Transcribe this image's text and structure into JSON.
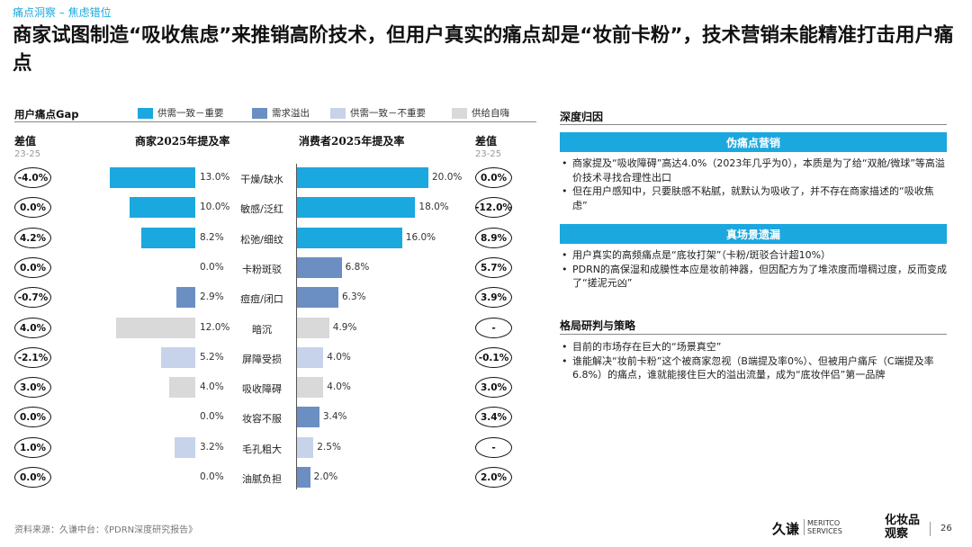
{
  "breadcrumb": "痛点洞察 – 焦虑错位",
  "headline": "商家试图制造“吸收焦虑”来推销高阶技术，但用户真实的痛点却是“妆前卡粉”，技术营销未能精准打击用户痛点",
  "chart": {
    "title": "用户痛点Gap",
    "legend": [
      {
        "label": "供需一致－重要",
        "color": "#1ba8df"
      },
      {
        "label": "需求溢出",
        "color": "#6b8fc2"
      },
      {
        "label": "供需一致－不重要",
        "color": "#c7d3ea"
      },
      {
        "label": "供给自嗨",
        "color": "#d9d9d9"
      }
    ],
    "left_diff_header": "差值",
    "left_diff_sub": "23-25",
    "merchant_header": "商家2025年提及率",
    "consumer_header": "消费者2025年提及率",
    "right_diff_header": "差值",
    "right_diff_sub": "23-25"
  },
  "chart_data": {
    "type": "bar",
    "categories": [
      "干燥/缺水",
      "敏感/泛红",
      "松弛/细纹",
      "卡粉斑驳",
      "痘痘/闭口",
      "暗沉",
      "屏障受损",
      "吸收障碍",
      "妆容不服",
      "毛孔粗大",
      "油腻负担"
    ],
    "series": [
      {
        "name": "商家2025年提及率",
        "values": [
          13.0,
          10.0,
          8.2,
          0.0,
          2.9,
          12.0,
          5.2,
          4.0,
          0.0,
          3.2,
          0.0
        ],
        "labels": [
          "13.0%",
          "10.0%",
          "8.2%",
          "0.0%",
          "2.9%",
          "12.0%",
          "5.2%",
          "4.0%",
          "0.0%",
          "3.2%",
          "0.0%"
        ]
      },
      {
        "name": "消费者2025年提及率",
        "values": [
          20.0,
          18.0,
          16.0,
          6.8,
          6.3,
          4.9,
          4.0,
          4.0,
          3.4,
          2.5,
          2.0
        ],
        "labels": [
          "20.0%",
          "18.0%",
          "16.0%",
          "6.8%",
          "6.3%",
          "4.9%",
          "4.0%",
          "4.0%",
          "3.4%",
          "2.5%",
          "2.0%"
        ]
      }
    ],
    "bar_groups": [
      "供需一致－重要",
      "供需一致－重要",
      "供需一致－重要",
      "需求溢出",
      "需求溢出",
      "供给自嗨",
      "供需一致－不重要",
      "供给自嗨",
      "需求溢出",
      "供需一致－不重要",
      "需求溢出"
    ],
    "merchant_diff": [
      "-4.0%",
      "0.0%",
      "4.2%",
      "0.0%",
      "-0.7%",
      "4.0%",
      "-2.1%",
      "3.0%",
      "0.0%",
      "1.0%",
      "0.0%"
    ],
    "consumer_diff": [
      "0.0%",
      "-12.0%",
      "8.9%",
      "5.7%",
      "3.9%",
      "-",
      "-0.1%",
      "3.0%",
      "3.4%",
      "-",
      "2.0%"
    ]
  },
  "right_panel": {
    "section1_title": "深度归因",
    "band1": "伪痛点营销",
    "band1_items": [
      "商家提及“吸收障碍”高达4.0%（2023年几乎为0），本质是为了给“双舱/微球”等高溢价技术寻找合理性出口",
      "但在用户感知中，只要肤感不粘腻，就默认为吸收了，并不存在商家描述的“吸收焦虑”"
    ],
    "band2": "真场景遗漏",
    "band2_items": [
      "用户真实的高频痛点是“底妆打架”（卡粉/斑驳合计超10%）",
      "PDRN的高保湿和成膜性本应是妆前神器，但因配方为了堆浓度而增稠过度，反而变成了“搓泥元凶”"
    ],
    "section2_title": "格局研判与策略",
    "section2_items": [
      "目前的市场存在巨大的“场景真空”",
      "谁能解决“妆前卡粉”这个被商家忽视（B端提及率0%）、但被用户痛斥（C端提及率6.8%）的痛点，谁就能接住巨大的溢出流量，成为“底妆伴侣”第一品牌"
    ]
  },
  "footer": {
    "source": "资料来源：久谦中台：《PDRN深度研究报告》",
    "logo_jiuqian": "久谦",
    "logo_meritco_1": "MERITCO",
    "logo_meritco_2": "SERVICES",
    "logo_hzp_1": "化妆品",
    "logo_hzp_2": "观察",
    "page_number": "26"
  },
  "colors": {
    "accent": "#1ba8df",
    "overflow": "#6b8fc2",
    "light": "#c7d3ea",
    "gray": "#d9d9d9"
  }
}
